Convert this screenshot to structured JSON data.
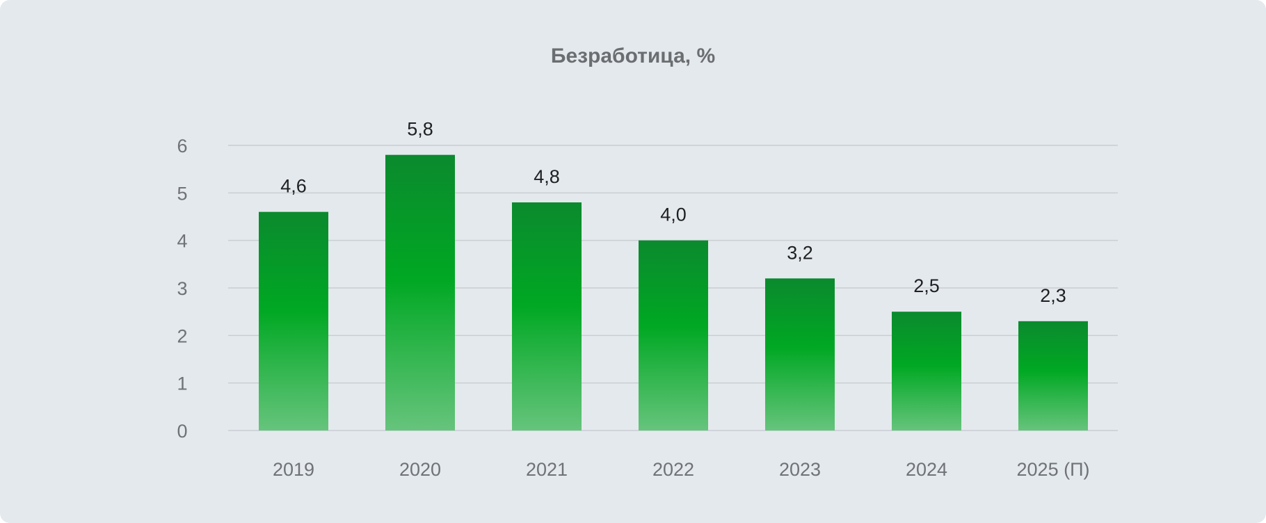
{
  "chart_data": {
    "type": "bar",
    "title": "Безработица, %",
    "categories": [
      "2019",
      "2020",
      "2021",
      "2022",
      "2023",
      "2024",
      "2025 (П)"
    ],
    "values": [
      4.6,
      5.8,
      4.8,
      4.0,
      3.2,
      2.5,
      2.3
    ],
    "value_labels": [
      "4,6",
      "5,8",
      "4,8",
      "4,0",
      "3,2",
      "2,5",
      "2,3"
    ],
    "y_ticks": [
      "0",
      "1",
      "2",
      "3",
      "4",
      "5",
      "6"
    ],
    "ylim": [
      0,
      6
    ],
    "grid": true,
    "xlabel": "",
    "ylabel": "",
    "colors": {
      "background": "#e4e9ed",
      "bar_top": "#0b8a2e",
      "bar_mid": "#00a823",
      "bar_bottom": "#66c47c",
      "grid": "#c9ced3"
    }
  }
}
